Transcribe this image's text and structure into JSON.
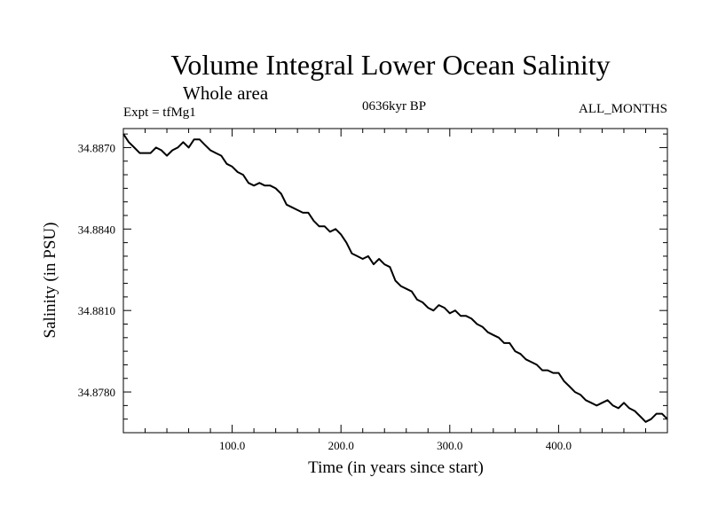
{
  "chart_data": {
    "type": "line",
    "title": "Volume Integral Lower Ocean Salinity",
    "subtitle": "Whole area",
    "expt_label": "Expt = tfMg1",
    "period_label": "0636kyr BP",
    "months_label": "ALL_MONTHS",
    "xlabel": "Time (in years since start)",
    "ylabel": "Salinity (in PSU)",
    "xlim": [
      0,
      500
    ],
    "ylim": [
      34.8765,
      34.8877
    ],
    "x_ticks": [
      100,
      200,
      300,
      400
    ],
    "x_tick_labels": [
      "100.0",
      "200.0",
      "300.0",
      "400.0"
    ],
    "y_ticks": [
      34.878,
      34.881,
      34.884,
      34.887
    ],
    "y_tick_labels": [
      "34.8780",
      "34.8810",
      "34.8840",
      "34.8870"
    ],
    "grid": false,
    "color": "#000000",
    "series": [
      {
        "x": [
          0,
          5,
          10,
          15,
          20,
          25,
          30,
          35,
          40,
          45,
          50,
          55,
          60,
          65,
          70,
          75,
          80,
          85,
          90,
          95,
          100,
          105,
          110,
          115,
          120,
          125,
          130,
          135,
          140,
          145,
          150,
          155,
          160,
          165,
          170,
          175,
          180,
          185,
          190,
          195,
          200,
          205,
          210,
          215,
          220,
          225,
          230,
          235,
          240,
          245,
          250,
          255,
          260,
          265,
          270,
          275,
          280,
          285,
          290,
          295,
          300,
          305,
          310,
          315,
          320,
          325,
          330,
          335,
          340,
          345,
          350,
          355,
          360,
          365,
          370,
          375,
          380,
          385,
          390,
          395,
          400,
          405,
          410,
          415,
          420,
          425,
          430,
          435,
          440,
          445,
          450,
          455,
          460,
          465,
          470,
          475,
          480,
          485,
          490,
          495,
          500
        ],
        "values": [
          34.8875,
          34.8872,
          34.887,
          34.8868,
          34.8868,
          34.8868,
          34.887,
          34.8869,
          34.8867,
          34.8869,
          34.887,
          34.8872,
          34.887,
          34.8873,
          34.8873,
          34.8871,
          34.8869,
          34.8868,
          34.8867,
          34.8864,
          34.8863,
          34.8861,
          34.886,
          34.8857,
          34.8856,
          34.8857,
          34.8856,
          34.8856,
          34.8855,
          34.8853,
          34.8849,
          34.8848,
          34.8847,
          34.8846,
          34.8846,
          34.8843,
          34.8841,
          34.8841,
          34.8839,
          34.884,
          34.8838,
          34.8835,
          34.8831,
          34.883,
          34.8829,
          34.883,
          34.8827,
          34.8829,
          34.8827,
          34.8826,
          34.8821,
          34.8819,
          34.8818,
          34.8817,
          34.8814,
          34.8813,
          34.8811,
          34.881,
          34.8812,
          34.8811,
          34.8809,
          34.881,
          34.8808,
          34.8808,
          34.8807,
          34.8805,
          34.8804,
          34.8802,
          34.8801,
          34.88,
          34.8798,
          34.8798,
          34.8795,
          34.8794,
          34.8792,
          34.8791,
          34.879,
          34.8788,
          34.8788,
          34.8787,
          34.8787,
          34.8784,
          34.8782,
          34.878,
          34.8779,
          34.8777,
          34.8776,
          34.8775,
          34.8776,
          34.8777,
          34.8775,
          34.8774,
          34.8776,
          34.8774,
          34.8773,
          34.8771,
          34.8769,
          34.877,
          34.8772,
          34.8772,
          34.877
        ]
      }
    ]
  }
}
